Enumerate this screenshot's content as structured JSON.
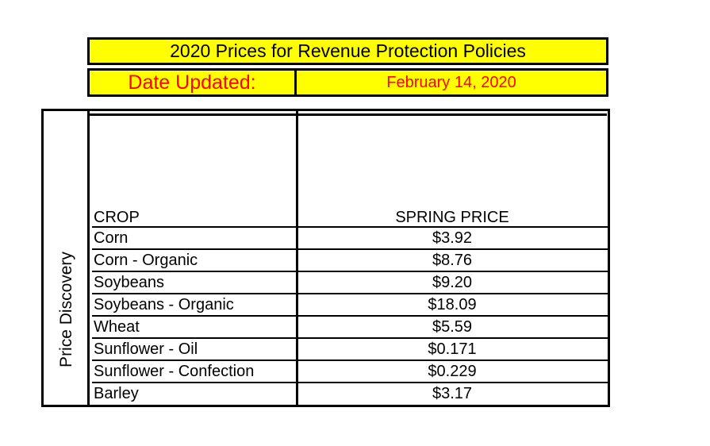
{
  "header": {
    "title": "2020 Prices for Revenue Protection Policies",
    "date_label": "Date Updated:",
    "date_value": "February 14, 2020"
  },
  "table": {
    "side_label": "Price Discovery",
    "columns": {
      "crop": "CROP",
      "price": "SPRING PRICE"
    },
    "rows": [
      {
        "crop": "Corn",
        "price": "$3.92"
      },
      {
        "crop": "Corn - Organic",
        "price": "$8.76"
      },
      {
        "crop": "Soybeans",
        "price": "$9.20"
      },
      {
        "crop": "Soybeans - Organic",
        "price": "$18.09"
      },
      {
        "crop": "Wheat",
        "price": "$5.59"
      },
      {
        "crop": "Sunflower - Oil",
        "price": "$0.171"
      },
      {
        "crop": "Sunflower - Confection",
        "price": "$0.229"
      },
      {
        "crop": "Barley",
        "price": "$3.17"
      }
    ]
  },
  "colors": {
    "header_bg": "#ffff00",
    "date_text": "#ff0000",
    "border": "#000000"
  }
}
